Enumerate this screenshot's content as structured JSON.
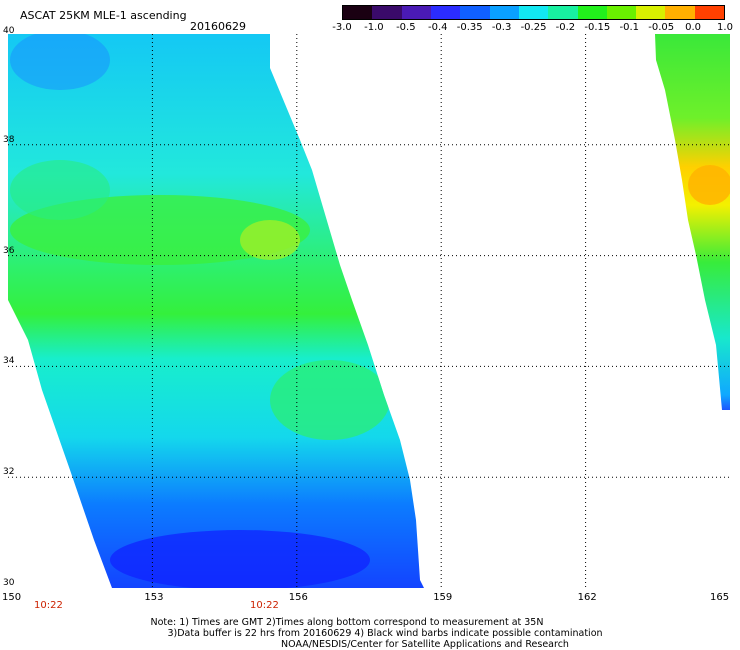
{
  "header": {
    "title": "ASCAT 25KM MLE-1 ascending",
    "date": "20160629"
  },
  "colorbar": {
    "labels": [
      "-3.0",
      "-1.0",
      "-0.5",
      "-0.4",
      "-0.35",
      "-0.3",
      "-0.25",
      "-0.2",
      "-0.15",
      "-0.1",
      "-0.05",
      "0.0",
      "1.0"
    ],
    "colors": [
      "#1a0012",
      "#3a0a6a",
      "#4a1ab5",
      "#2b2cff",
      "#1060ff",
      "#0aa0ff",
      "#12e8f2",
      "#18f0a0",
      "#22f01c",
      "#6af000",
      "#d8f000",
      "#ffb000",
      "#ff4000"
    ]
  },
  "axes": {
    "lon_ticks": [
      "150",
      "153",
      "156",
      "159",
      "162",
      "165"
    ],
    "lat_ticks": [
      "40",
      "38",
      "36",
      "34",
      "32",
      "30"
    ]
  },
  "times": {
    "left": "10:22",
    "right": "10:22"
  },
  "notes": {
    "line1": "Note: 1) Times are GMT 2)Times along bottom correspond to measurement at 35N",
    "line2": "3)Data buffer is 22 hrs from 20160629 4) Black wind barbs indicate possible contamination",
    "line3": "NOAA/NESDIS/Center for Satellite Applications and Research"
  }
}
